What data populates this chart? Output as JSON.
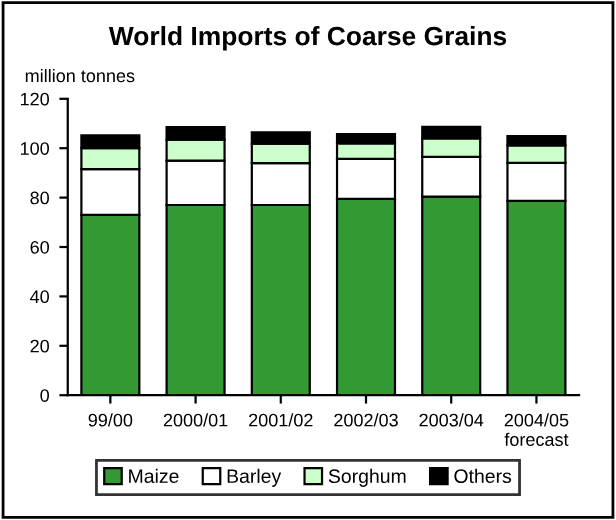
{
  "chart_data": {
    "type": "bar",
    "stacked": true,
    "title": "World Imports of Coarse Grains",
    "ylabel": "million tonnes",
    "categories": [
      "99/00",
      "2000/01",
      "2001/02",
      "2002/03",
      "2003/04",
      "2004/05\nforecast"
    ],
    "series": [
      {
        "name": "Maize",
        "color": "#339933",
        "values": [
          73,
          77,
          77,
          79.5,
          80.4,
          78.7
        ]
      },
      {
        "name": "Barley",
        "color": "#ffffff",
        "values": [
          18.5,
          18,
          17,
          16.2,
          16.1,
          15.4
        ]
      },
      {
        "name": "Sorghum",
        "color": "#ccffcc",
        "values": [
          8.5,
          8.5,
          7.8,
          6.2,
          7.5,
          7
        ]
      },
      {
        "name": "Others",
        "color": "#000000",
        "values": [
          5.2,
          5,
          4.6,
          3.8,
          4.6,
          3.8
        ]
      }
    ],
    "ylim": [
      0,
      120
    ],
    "yticks": [
      0,
      20,
      40,
      60,
      80,
      100,
      120
    ],
    "grid": false,
    "legend": "bottom"
  }
}
